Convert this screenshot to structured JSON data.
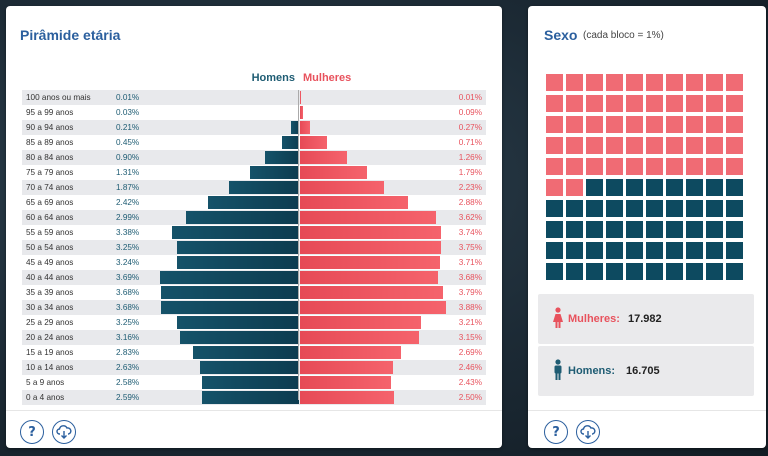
{
  "pyramid": {
    "title": "Pirâmide etária",
    "legend_men": "Homens",
    "legend_women": "Mulheres",
    "colors": {
      "men": "#0d3c50",
      "women": "#f0545e"
    }
  },
  "chart_data": {
    "type": "bar",
    "title": "Pirâmide etária",
    "orientation": "horizontal-diverging",
    "categories": [
      "100 anos ou mais",
      "95 a 99 anos",
      "90 a 94 anos",
      "85 a 89 anos",
      "80 a 84 anos",
      "75 a 79 anos",
      "70 a 74 anos",
      "65 a 69 anos",
      "60 a 64 anos",
      "55 a 59 anos",
      "50 a 54 anos",
      "45 a 49 anos",
      "40 a 44 anos",
      "35 a 39 anos",
      "30 a 34 anos",
      "25 a 29 anos",
      "20 a 24 anos",
      "15 a 19 anos",
      "10 a 14 anos",
      "5 a 9 anos",
      "0 a 4 anos"
    ],
    "series": [
      {
        "name": "Homens",
        "values": [
          0.01,
          0.03,
          0.21,
          0.45,
          0.9,
          1.31,
          1.87,
          2.42,
          2.99,
          3.38,
          3.25,
          3.24,
          3.69,
          3.68,
          3.68,
          3.25,
          3.16,
          2.83,
          2.63,
          2.58,
          2.59
        ],
        "labels": [
          "0.01%",
          "0.03%",
          "0.21%",
          "0.45%",
          "0.90%",
          "1.31%",
          "1.87%",
          "2.42%",
          "2.99%",
          "3.38%",
          "3.25%",
          "3.24%",
          "3.69%",
          "3.68%",
          "3.68%",
          "3.25%",
          "3.16%",
          "2.83%",
          "2.63%",
          "2.58%",
          "2.59%"
        ]
      },
      {
        "name": "Mulheres",
        "values": [
          0.01,
          0.09,
          0.27,
          0.71,
          1.26,
          1.79,
          2.23,
          2.88,
          3.62,
          3.74,
          3.75,
          3.71,
          3.68,
          3.79,
          3.88,
          3.21,
          3.15,
          2.69,
          2.46,
          2.43,
          2.5
        ],
        "labels": [
          "0.01%",
          "0.09%",
          "0.27%",
          "0.71%",
          "1.26%",
          "1.79%",
          "2.23%",
          "2.88%",
          "3.62%",
          "3.74%",
          "3.75%",
          "3.71%",
          "3.68%",
          "3.79%",
          "3.88%",
          "3.21%",
          "3.15%",
          "2.69%",
          "2.46%",
          "2.43%",
          "2.50%"
        ]
      }
    ],
    "xlim": [
      0,
      3.88
    ]
  },
  "sex": {
    "title": "Sexo",
    "subtitle": "(cada bloco = 1%)",
    "waffle_women_blocks": 52,
    "waffle_total_blocks": 100,
    "women_label": "Mulheres:",
    "women_value": "17.982",
    "men_label": "Homens:",
    "men_value": "16.705"
  },
  "footer": {
    "help_symbol": "?",
    "help_icon": "question-icon",
    "download_icon": "cloud-download-icon"
  }
}
